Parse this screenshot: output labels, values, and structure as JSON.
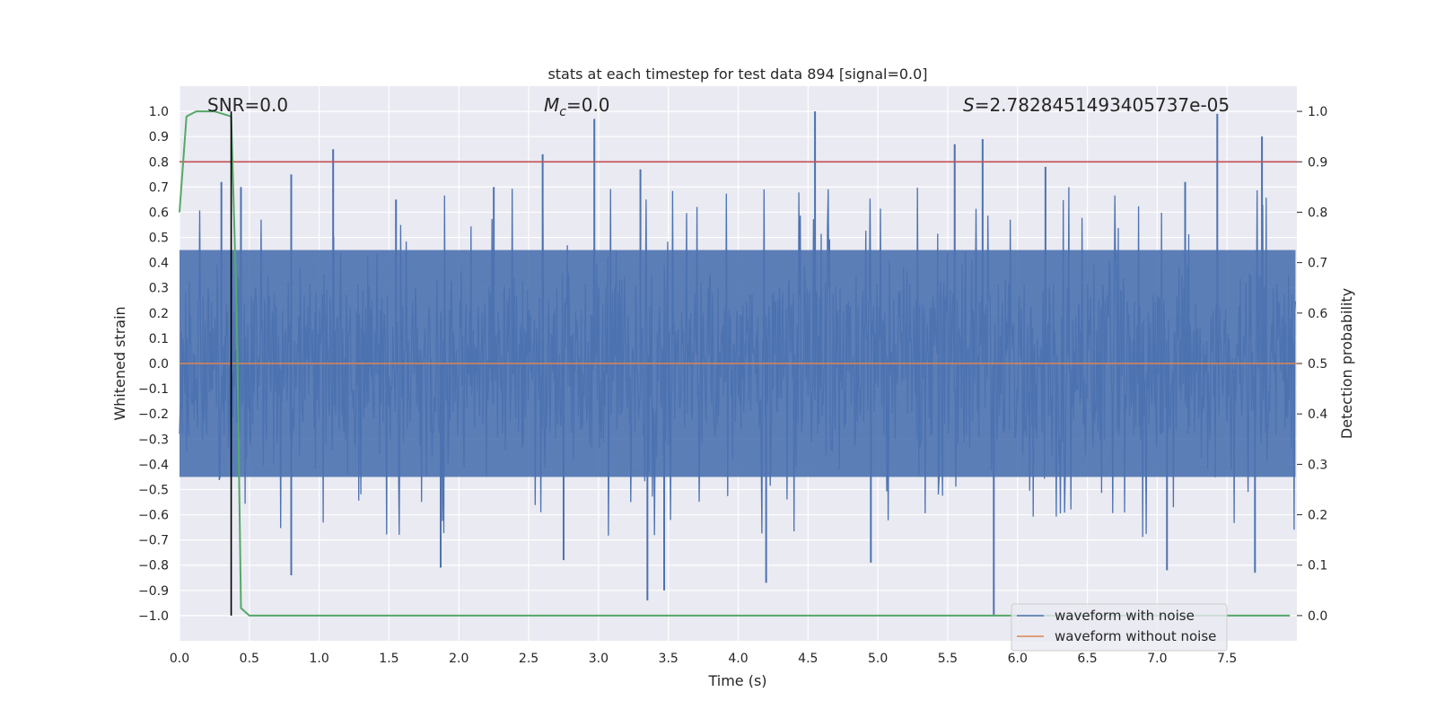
{
  "chart_data": {
    "type": "line",
    "title": "stats at each timestep for test data 894 [signal=0.0]",
    "xlabel": "Time (s)",
    "ylabel_left": "Whitened strain",
    "ylabel_right": "Detection probability",
    "xlim": [
      0.0,
      8.0
    ],
    "ylim_left": [
      -1.1,
      1.1
    ],
    "ylim_right": [
      -0.05,
      1.05
    ],
    "x_ticks": [
      "0.0",
      "0.5",
      "1.0",
      "1.5",
      "2.0",
      "2.5",
      "3.0",
      "3.5",
      "4.0",
      "4.5",
      "5.0",
      "5.5",
      "6.0",
      "6.5",
      "7.0",
      "7.5"
    ],
    "y_ticks_left": [
      "1.0",
      "0.9",
      "0.8",
      "0.7",
      "0.6",
      "0.5",
      "0.4",
      "0.3",
      "0.2",
      "0.1",
      "0.0",
      "−0.1",
      "−0.2",
      "−0.3",
      "−0.4",
      "−0.5",
      "−0.6",
      "−0.7",
      "−0.8",
      "−0.9",
      "−1.0"
    ],
    "y_ticks_right": [
      "1.0",
      "0.9",
      "0.8",
      "0.7",
      "0.6",
      "0.5",
      "0.4",
      "0.3",
      "0.2",
      "0.1",
      "0.0"
    ],
    "grid": true,
    "legend_placement": "lower-right",
    "annotations": {
      "snr": "SNR=0.0",
      "mc_symbol": "M",
      "mc_sub": "c",
      "mc_value": "=0.0",
      "s_symbol": "S",
      "s_value": "=2.7828451493405737e-05"
    },
    "threshold_right": 0.9,
    "marker_time": 0.37,
    "series": [
      {
        "name": "waveform with noise",
        "color": "#4c72b0",
        "typical_envelope": [
          -0.45,
          0.45
        ],
        "peaks": [
          {
            "x": 0.3,
            "y": 0.72
          },
          {
            "x": 0.44,
            "y": 0.7
          },
          {
            "x": 0.8,
            "y": 0.75
          },
          {
            "x": 1.1,
            "y": 0.85
          },
          {
            "x": 1.55,
            "y": 0.65
          },
          {
            "x": 2.25,
            "y": 0.7
          },
          {
            "x": 2.6,
            "y": 0.83
          },
          {
            "x": 2.97,
            "y": 0.97
          },
          {
            "x": 3.3,
            "y": 0.77
          },
          {
            "x": 4.55,
            "y": 1.0
          },
          {
            "x": 5.55,
            "y": 0.87
          },
          {
            "x": 5.75,
            "y": 0.89
          },
          {
            "x": 6.2,
            "y": 0.78
          },
          {
            "x": 7.2,
            "y": 0.72
          },
          {
            "x": 7.43,
            "y": 0.99
          },
          {
            "x": 7.75,
            "y": 0.9
          }
        ],
        "troughs": [
          {
            "x": 0.8,
            "y": -0.84
          },
          {
            "x": 1.87,
            "y": -0.81
          },
          {
            "x": 2.75,
            "y": -0.78
          },
          {
            "x": 3.35,
            "y": -0.94
          },
          {
            "x": 3.47,
            "y": -0.9
          },
          {
            "x": 4.2,
            "y": -0.87
          },
          {
            "x": 4.95,
            "y": -0.79
          },
          {
            "x": 5.83,
            "y": -1.0
          },
          {
            "x": 7.07,
            "y": -0.82
          },
          {
            "x": 7.7,
            "y": -0.83
          }
        ]
      },
      {
        "name": "waveform without noise",
        "color": "#dd8452",
        "x": [
          0.0,
          8.0
        ],
        "y": [
          0.0,
          0.0
        ]
      },
      {
        "name": "detection probability",
        "color": "#55a868",
        "axis": "right",
        "x": [
          0.0,
          0.05,
          0.12,
          0.25,
          0.37,
          0.41,
          0.44,
          0.5,
          7.95
        ],
        "y": [
          0.8,
          0.99,
          1.0,
          1.0,
          0.99,
          0.6,
          0.015,
          0.0,
          0.0
        ]
      }
    ]
  }
}
